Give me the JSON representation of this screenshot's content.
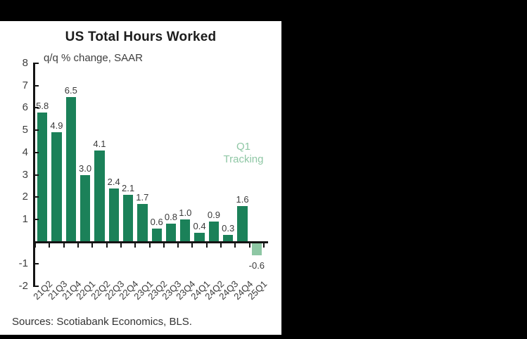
{
  "chart_data": {
    "type": "bar",
    "title": "US Total Hours Worked",
    "subtitle": "q/q % change, SAAR",
    "categories": [
      "21Q2",
      "21Q3",
      "21Q4",
      "22Q1",
      "22Q2",
      "22Q3",
      "22Q4",
      "23Q1",
      "23Q2",
      "23Q3",
      "23Q4",
      "24Q1",
      "24Q2",
      "24Q3",
      "24Q4",
      "25Q1"
    ],
    "values": [
      5.8,
      4.9,
      6.5,
      3.0,
      4.1,
      2.4,
      2.1,
      1.7,
      0.6,
      0.8,
      1.0,
      0.4,
      0.9,
      0.3,
      1.6,
      -0.6
    ],
    "xlabel": "",
    "ylabel": "",
    "ylim": [
      -2,
      8
    ],
    "ytick_labels": [
      8,
      7,
      6,
      5,
      4,
      3,
      2,
      1,
      -1,
      -2
    ],
    "grid": false,
    "legend_position": "right-middle",
    "bar_color": "#1b8159",
    "tracking_color": "#8ec7a4",
    "tracking_index": 15,
    "legend": {
      "label": "Q1 Tracking",
      "color": "#8fc7a5"
    }
  },
  "footer": {
    "sources": "Sources: Scotiabank Economics, BLS."
  },
  "window": {
    "background": "#000000",
    "panel_background": "#ffffff"
  }
}
